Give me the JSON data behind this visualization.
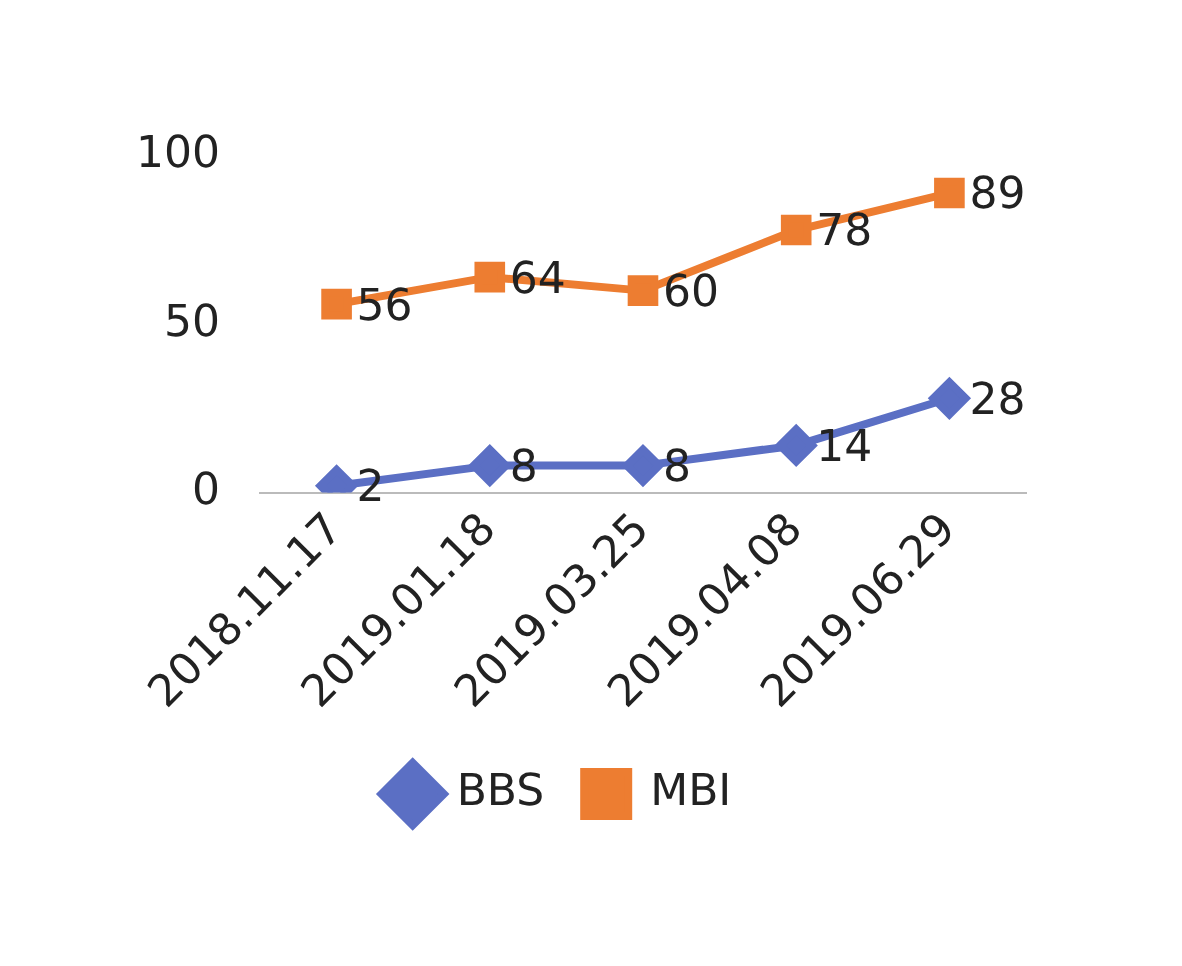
{
  "chart_data": {
    "type": "line",
    "categories": [
      "2018.11.17",
      "2019.01.18",
      "2019.03.25",
      "2019.04.08",
      "2019.06.29"
    ],
    "series": [
      {
        "name": "BBS",
        "color": "#5b6fc4",
        "values": [
          2,
          8,
          8,
          14,
          28
        ],
        "marker": "diamond"
      },
      {
        "name": "MBI",
        "color": "#ed7d31",
        "values": [
          56,
          64,
          60,
          78,
          89
        ],
        "marker": "square"
      }
    ],
    "ylim": [
      0,
      100
    ],
    "yticks": [
      0,
      50,
      100
    ],
    "grid": false,
    "legend": "bottom",
    "data_labels": true,
    "line_style": "solid"
  }
}
